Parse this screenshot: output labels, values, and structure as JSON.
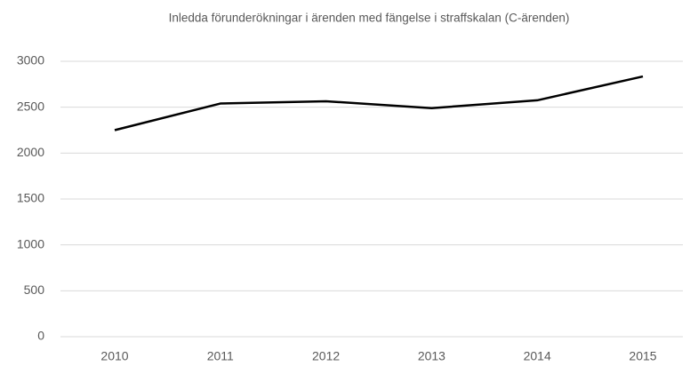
{
  "chart_data": {
    "type": "line",
    "title": "Inledda förunderökningar i ärenden med fängelse i straffskalan (C-ärenden)",
    "categories": [
      "2010",
      "2011",
      "2012",
      "2013",
      "2014",
      "2015"
    ],
    "series": [
      {
        "name": "C-ärenden",
        "color": "#000000",
        "values": [
          2250,
          2540,
          2565,
          2490,
          2575,
          2835
        ]
      }
    ],
    "ylim": [
      0,
      3000
    ],
    "yticks": [
      0,
      500,
      1000,
      1500,
      2000,
      2500,
      3000
    ],
    "grid": true
  }
}
